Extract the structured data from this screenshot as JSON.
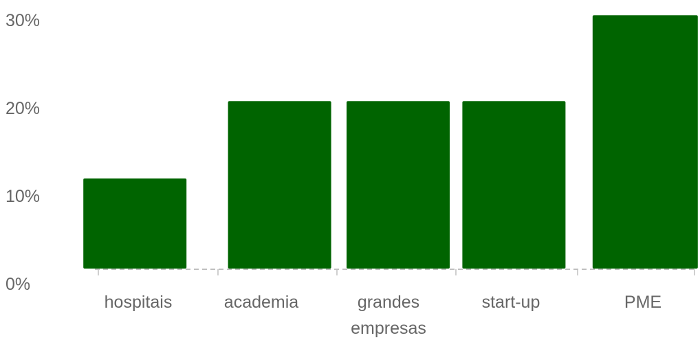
{
  "chart_data": {
    "type": "bar",
    "categories": [
      "hospitais",
      "academia",
      "grandes empresas",
      "start-up",
      "PME"
    ],
    "category_label_lines": [
      [
        "hospitais"
      ],
      [
        "academia"
      ],
      [
        "grandes",
        "empresas"
      ],
      [
        "start-up"
      ],
      [
        "PME"
      ]
    ],
    "values": [
      10.5,
      19.5,
      19.5,
      19.5,
      29.5
    ],
    "ylim": [
      0,
      30
    ],
    "yticks": [
      0,
      10,
      20,
      30
    ],
    "ytick_labels": [
      "0%",
      "10%",
      "20%",
      "30%"
    ],
    "title": "",
    "xlabel": "",
    "ylabel": "",
    "grid": false,
    "legend": "none",
    "colors": {
      "bar": "#006400",
      "baseline": "#bfbfbf",
      "text": "#666666"
    }
  }
}
